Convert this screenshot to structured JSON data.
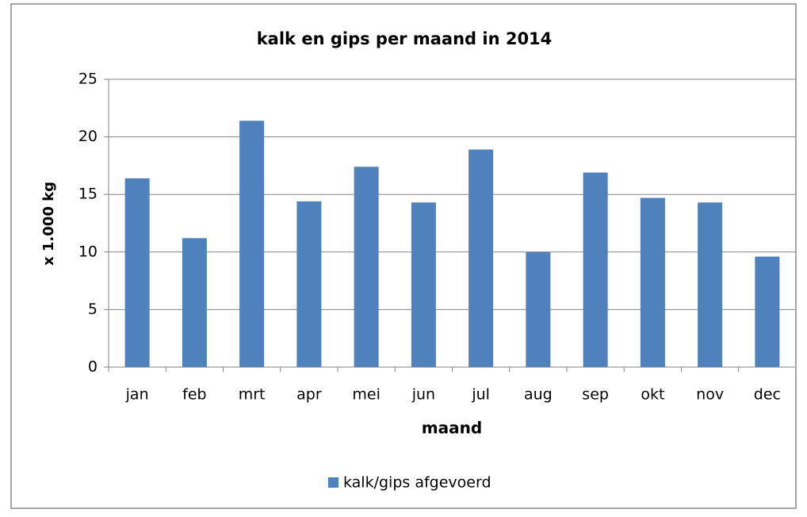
{
  "chart_data": {
    "type": "bar",
    "title": "kalk en gips per maand in 2014",
    "x_label": "maand",
    "y_label": "x 1.000 kg",
    "categories": [
      "jan",
      "feb",
      "mrt",
      "apr",
      "mei",
      "jun",
      "jul",
      "aug",
      "sep",
      "okt",
      "nov",
      "dec"
    ],
    "series": [
      {
        "name": "kalk/gips afgevoerd",
        "color": "#4f81bd",
        "values": [
          16.4,
          11.2,
          21.4,
          14.4,
          17.4,
          14.3,
          18.9,
          10.0,
          16.9,
          14.7,
          14.3,
          9.6
        ]
      }
    ],
    "ylim": [
      0,
      25
    ],
    "yticks": [
      0,
      5,
      10,
      15,
      20,
      25
    ],
    "grid": true,
    "legend": "bottom"
  }
}
